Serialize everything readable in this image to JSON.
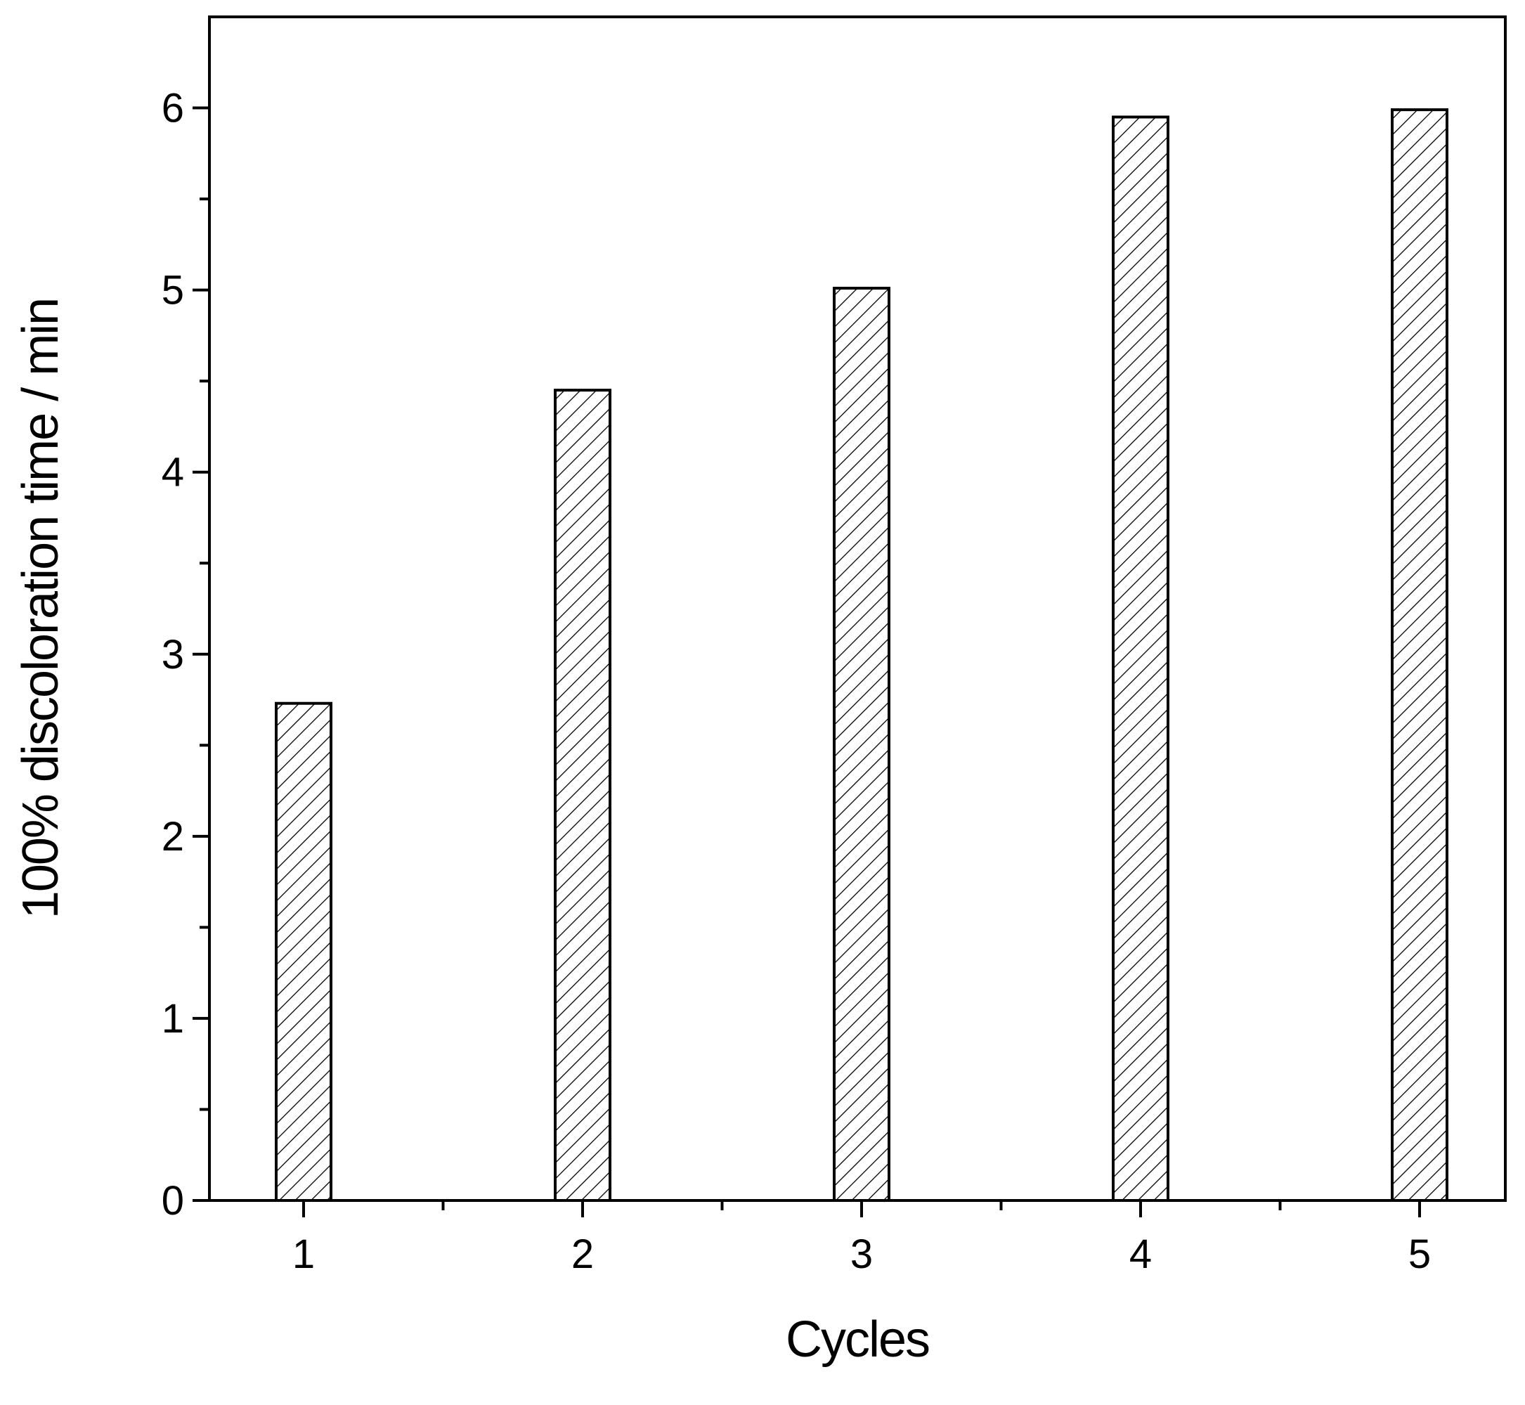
{
  "chart_data": {
    "type": "bar",
    "title": "",
    "xlabel": "Cycles",
    "ylabel": "100% discoloration time / min",
    "categories": [
      "1",
      "2",
      "3",
      "4",
      "5"
    ],
    "values": [
      2.73,
      4.45,
      5.01,
      5.95,
      5.99
    ],
    "ylim": [
      0,
      6.5
    ],
    "yticks": [
      "0",
      "1",
      "2",
      "3",
      "4",
      "5",
      "6"
    ],
    "ytick_values": [
      0,
      1,
      2,
      3,
      4,
      5,
      6
    ],
    "grid": false,
    "legend": "none",
    "bar_fill": "hatched diagonal",
    "colors": {
      "bar_stroke": "#000000",
      "bar_background": "#ffffff",
      "hatch": "#000000",
      "axis": "#000000"
    }
  }
}
